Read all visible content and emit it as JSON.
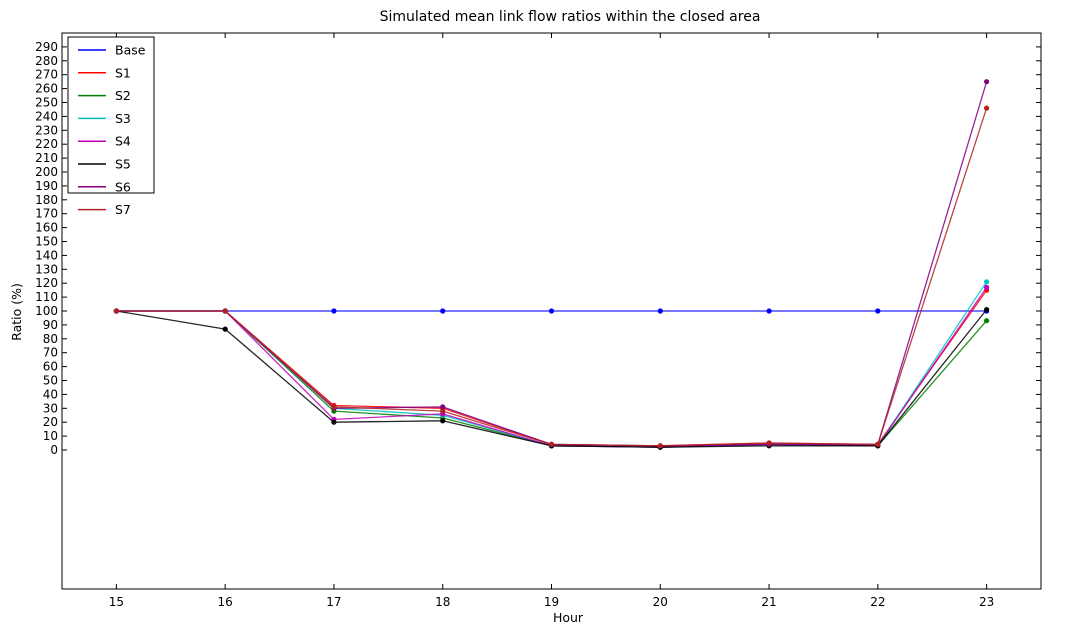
{
  "chart_data": {
    "type": "line",
    "title": "Simulated mean link flow ratios within the closed area",
    "xlabel": "Hour",
    "ylabel": "Ratio (%)",
    "x": [
      15,
      16,
      17,
      18,
      19,
      20,
      21,
      22,
      23
    ],
    "xlim": [
      14.5,
      23.5
    ],
    "ylim": [
      -100,
      300
    ],
    "yticks": [
      0,
      10,
      20,
      30,
      40,
      50,
      60,
      70,
      80,
      90,
      100,
      110,
      120,
      130,
      140,
      150,
      160,
      170,
      180,
      190,
      200,
      210,
      220,
      230,
      240,
      250,
      260,
      270,
      280,
      290
    ],
    "grid": false,
    "legend_position": "top-left",
    "series": [
      {
        "name": "Base",
        "color": "#0000ff",
        "values": [
          100,
          100,
          100,
          100,
          100,
          100,
          100,
          100,
          100
        ]
      },
      {
        "name": "S1",
        "color": "#ff0000",
        "values": [
          100,
          100,
          32,
          30,
          4,
          3,
          5,
          4,
          115
        ]
      },
      {
        "name": "S2",
        "color": "#008000",
        "values": [
          100,
          100,
          28,
          23,
          3,
          2,
          4,
          3,
          93
        ]
      },
      {
        "name": "S3",
        "color": "#00bfbf",
        "values": [
          100,
          100,
          30,
          25,
          3,
          2,
          4,
          3,
          121
        ]
      },
      {
        "name": "S4",
        "color": "#bf00bf",
        "values": [
          100,
          100,
          22,
          26,
          3,
          2,
          4,
          3,
          117
        ]
      },
      {
        "name": "S5",
        "color": "#000000",
        "values": [
          100,
          87,
          20,
          21,
          3,
          2,
          3,
          3,
          101
        ]
      },
      {
        "name": "S6",
        "color": "#800080",
        "values": [
          100,
          100,
          30,
          31,
          4,
          3,
          4,
          4,
          265
        ]
      },
      {
        "name": "S7",
        "color": "#b22222",
        "values": [
          100,
          100,
          31,
          28,
          4,
          3,
          5,
          4,
          246
        ]
      }
    ]
  }
}
